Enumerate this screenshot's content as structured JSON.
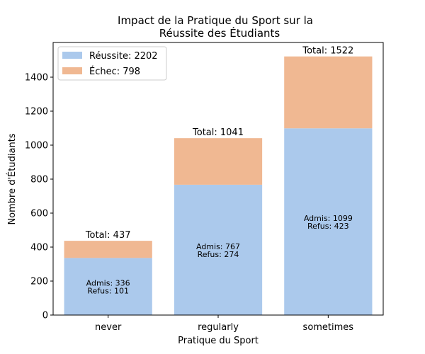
{
  "chart_data": {
    "type": "bar",
    "stacked": true,
    "title_line1": "Impact de la Pratique du Sport sur la",
    "title_line2": "Réussite des Étudiants",
    "xlabel": "Pratique du Sport",
    "ylabel": "Nombre d'Étudiants",
    "categories": [
      "never",
      "regularly",
      "sometimes"
    ],
    "ylim": [
      0,
      1580
    ],
    "yticks": [
      0,
      200,
      400,
      600,
      800,
      1000,
      1200,
      1400
    ],
    "grid": false,
    "legend_position": "top-left",
    "series": [
      {
        "name": "Réussite: 2202",
        "values": [
          336,
          767,
          1099
        ],
        "color": "#abc9ec"
      },
      {
        "name": "Échec: 798",
        "values": [
          101,
          274,
          423
        ],
        "color": "#f0b892"
      }
    ],
    "totals": [
      "Total: 437",
      "Total: 1041",
      "Total: 1522"
    ],
    "inner_labels": [
      [
        "Admis: 336",
        "Refus: 101"
      ],
      [
        "Admis: 767",
        "Refus: 274"
      ],
      [
        "Admis: 1099",
        "Refus: 423"
      ]
    ]
  }
}
